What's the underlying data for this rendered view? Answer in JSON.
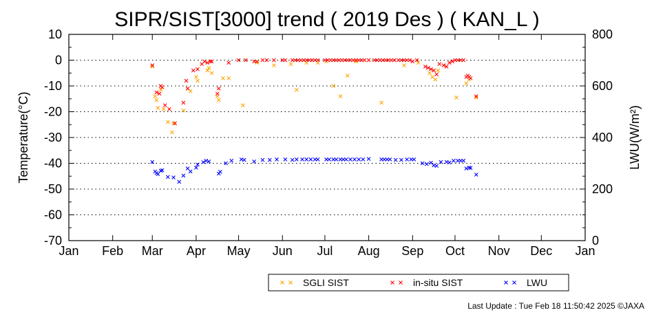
{
  "chart_data": {
    "type": "scatter",
    "title": "SIPR/SIST[3000] trend ( 2019 Des ) ( KAN_L )",
    "ylabel_left": "Temperature(°C)",
    "ylabel_right": "LWU(W/m²)",
    "ylim_left": [
      -70,
      10
    ],
    "ylim_right": [
      0,
      800
    ],
    "yticks_left": [
      "10",
      "0",
      "-10",
      "-20",
      "-30",
      "-40",
      "-50",
      "-60",
      "-70"
    ],
    "yticks_right": [
      "800",
      "600",
      "400",
      "200",
      "0"
    ],
    "x_tick_labels": [
      "Jan",
      "Feb",
      "Mar",
      "Apr",
      "May",
      "Jun",
      "Jul",
      "Aug",
      "Sep",
      "Oct",
      "Nov",
      "Dec",
      "Jan"
    ],
    "grid": "dotted horizontal at every 10 °C",
    "legend_placement": "bottom-right",
    "series": [
      {
        "name": "SGLI SIST",
        "color": "#ffa500",
        "axis": "left",
        "points": [
          [
            "Mar 1",
            -2.5
          ],
          [
            "Mar 3",
            -14
          ],
          [
            "Mar 4",
            -15.5
          ],
          [
            "Mar 5",
            -18.5
          ],
          [
            "Mar 7",
            -11.5
          ],
          [
            "Mar 9",
            -19
          ],
          [
            "Mar 12",
            -24
          ],
          [
            "Mar 15",
            -28
          ],
          [
            "Mar 16",
            -24.5
          ],
          [
            "Mar 23",
            -19.5
          ],
          [
            "Mar 26",
            -11
          ],
          [
            "Mar 28",
            -12
          ],
          [
            "Apr 1",
            -6.5
          ],
          [
            "Apr 2",
            -8
          ],
          [
            "Apr 9",
            -4
          ],
          [
            "Apr 10",
            -3
          ],
          [
            "Apr 12",
            -5
          ],
          [
            "Apr 16",
            -14
          ],
          [
            "Apr 17",
            -15.5
          ],
          [
            "Apr 20",
            -7
          ],
          [
            "Apr 24",
            -7
          ],
          [
            "May 4",
            -17.5
          ],
          [
            "May 14",
            -1
          ],
          [
            "May 26",
            -2
          ],
          [
            "Jun 7",
            -1.5
          ],
          [
            "Jun 11",
            -11.5
          ],
          [
            "Jun 18",
            -1
          ],
          [
            "Jun 26",
            -1
          ],
          [
            "Jul 2",
            -0.5
          ],
          [
            "Jul 7",
            -10
          ],
          [
            "Jul 12",
            -14
          ],
          [
            "Jul 17",
            -6
          ],
          [
            "Jul 23",
            -0.5
          ],
          [
            "Aug 10",
            -16.5
          ],
          [
            "Aug 26",
            -2
          ],
          [
            "Sep 5",
            -1
          ],
          [
            "Sep 13",
            -5
          ],
          [
            "Sep 15",
            -6.5
          ],
          [
            "Sep 17",
            -7.5
          ],
          [
            "Sep 19",
            -4
          ],
          [
            "Sep 23",
            -2
          ],
          [
            "Oct 2",
            -14.5
          ],
          [
            "Oct 9",
            -9
          ],
          [
            "Oct 11",
            -7.5
          ],
          [
            "Oct 16",
            -14.5
          ]
        ]
      },
      {
        "name": "in-situ SIST",
        "color": "#ff0000",
        "axis": "left",
        "points": [
          [
            "Mar 1",
            -2
          ],
          [
            "Mar 4",
            -12.5
          ],
          [
            "Mar 6",
            -13
          ],
          [
            "Mar 7",
            -10
          ],
          [
            "Mar 8",
            -10.5
          ],
          [
            "Mar 10",
            -17.5
          ],
          [
            "Mar 13",
            -19
          ],
          [
            "Mar 17",
            -24.5
          ],
          [
            "Mar 23",
            -16.5
          ],
          [
            "Mar 25",
            -8
          ],
          [
            "Mar 26",
            -11
          ],
          [
            "Mar 30",
            -4
          ],
          [
            "Apr 2",
            -3.5
          ],
          [
            "Apr 5",
            -1.5
          ],
          [
            "Apr 7",
            -0.5
          ],
          [
            "Apr 9",
            -1
          ],
          [
            "Apr 11",
            -0.5
          ],
          [
            "Apr 12",
            -0.5
          ],
          [
            "Apr 16",
            -13
          ],
          [
            "Apr 17",
            -11
          ],
          [
            "Apr 24",
            -1
          ],
          [
            "May 1",
            0
          ],
          [
            "May 6",
            0
          ],
          [
            "May 12",
            -0.5
          ],
          [
            "May 14",
            -0.5
          ],
          [
            "May 18",
            0
          ],
          [
            "May 21",
            0
          ],
          [
            "May 26",
            0
          ],
          [
            "Jun 1",
            0
          ],
          [
            "Jun 3",
            0
          ],
          [
            "Jun 8",
            0
          ],
          [
            "Jun 10",
            0
          ],
          [
            "Jun 12",
            0
          ],
          [
            "Jun 14",
            0
          ],
          [
            "Jun 16",
            0
          ],
          [
            "Jun 18",
            0
          ],
          [
            "Jun 20",
            0
          ],
          [
            "Jun 22",
            0
          ],
          [
            "Jun 24",
            0
          ],
          [
            "Jun 26",
            0
          ],
          [
            "Jul 1",
            0
          ],
          [
            "Jul 3",
            0
          ],
          [
            "Jul 5",
            0
          ],
          [
            "Jul 7",
            0
          ],
          [
            "Jul 9",
            0
          ],
          [
            "Jul 11",
            0
          ],
          [
            "Jul 13",
            0
          ],
          [
            "Jul 15",
            0
          ],
          [
            "Jul 17",
            0
          ],
          [
            "Jul 19",
            0
          ],
          [
            "Jul 21",
            0
          ],
          [
            "Jul 23",
            0
          ],
          [
            "Jul 25",
            0
          ],
          [
            "Jul 27",
            0
          ],
          [
            "Jul 29",
            0
          ],
          [
            "Aug 1",
            0
          ],
          [
            "Aug 5",
            0
          ],
          [
            "Aug 7",
            0
          ],
          [
            "Aug 9",
            0
          ],
          [
            "Aug 11",
            0
          ],
          [
            "Aug 13",
            0
          ],
          [
            "Aug 15",
            0
          ],
          [
            "Aug 17",
            0
          ],
          [
            "Aug 19",
            0
          ],
          [
            "Aug 22",
            0
          ],
          [
            "Aug 24",
            0
          ],
          [
            "Aug 26",
            0
          ],
          [
            "Aug 28",
            0
          ],
          [
            "Aug 30",
            0
          ],
          [
            "Sep 1",
            -0.5
          ],
          [
            "Sep 4",
            0
          ],
          [
            "Sep 10",
            -2.5
          ],
          [
            "Sep 12",
            -3
          ],
          [
            "Sep 14",
            -3.5
          ],
          [
            "Sep 16",
            -4
          ],
          [
            "Sep 18",
            -5.5
          ],
          [
            "Sep 20",
            -1.5
          ],
          [
            "Sep 23",
            -2
          ],
          [
            "Sep 25",
            -2.5
          ],
          [
            "Sep 27",
            -1
          ],
          [
            "Sep 29",
            -0.5
          ],
          [
            "Oct 1",
            0
          ],
          [
            "Oct 3",
            0
          ],
          [
            "Oct 5",
            0
          ],
          [
            "Oct 7",
            0
          ],
          [
            "Oct 9",
            -6.5
          ],
          [
            "Oct 10",
            -6
          ],
          [
            "Oct 11",
            -6.5
          ],
          [
            "Oct 12",
            -7
          ],
          [
            "Oct 16",
            -14
          ]
        ]
      },
      {
        "name": "LWU",
        "color": "#0000ff",
        "axis": "right",
        "points": [
          [
            "Mar 1",
            305
          ],
          [
            "Mar 3",
            268
          ],
          [
            "Mar 4",
            262
          ],
          [
            "Mar 5",
            258
          ],
          [
            "Mar 7",
            271
          ],
          [
            "Mar 8",
            273
          ],
          [
            "Mar 12",
            247
          ],
          [
            "Mar 16",
            245
          ],
          [
            "Mar 20",
            228
          ],
          [
            "Mar 23",
            252
          ],
          [
            "Mar 26",
            280
          ],
          [
            "Mar 28",
            268
          ],
          [
            "Apr 1",
            283
          ],
          [
            "Apr 2",
            295
          ],
          [
            "Apr 6",
            304
          ],
          [
            "Apr 8",
            310
          ],
          [
            "Apr 10",
            307
          ],
          [
            "Apr 17",
            260
          ],
          [
            "Apr 18",
            267
          ],
          [
            "Apr 22",
            300
          ],
          [
            "Apr 26",
            310
          ],
          [
            "May 3",
            315
          ],
          [
            "May 5",
            313
          ],
          [
            "May 12",
            307
          ],
          [
            "May 18",
            313
          ],
          [
            "May 23",
            313
          ],
          [
            "May 28",
            315
          ],
          [
            "Jun 3",
            315
          ],
          [
            "Jun 8",
            313
          ],
          [
            "Jun 11",
            315
          ],
          [
            "Jun 15",
            315
          ],
          [
            "Jun 18",
            315
          ],
          [
            "Jun 21",
            315
          ],
          [
            "Jun 24",
            315
          ],
          [
            "Jun 26",
            315
          ],
          [
            "Jul 2",
            315
          ],
          [
            "Jul 4",
            315
          ],
          [
            "Jul 7",
            315
          ],
          [
            "Jul 9",
            315
          ],
          [
            "Jul 12",
            315
          ],
          [
            "Jul 14",
            315
          ],
          [
            "Jul 16",
            315
          ],
          [
            "Jul 19",
            315
          ],
          [
            "Jul 22",
            315
          ],
          [
            "Jul 25",
            315
          ],
          [
            "Jul 28",
            315
          ],
          [
            "Aug 1",
            317
          ],
          [
            "Aug 10",
            315
          ],
          [
            "Aug 12",
            315
          ],
          [
            "Aug 14",
            315
          ],
          [
            "Aug 16",
            315
          ],
          [
            "Aug 20",
            313
          ],
          [
            "Aug 24",
            313
          ],
          [
            "Aug 28",
            315
          ],
          [
            "Aug 31",
            315
          ],
          [
            "Sep 2",
            315
          ],
          [
            "Sep 8",
            300
          ],
          [
            "Sep 11",
            297
          ],
          [
            "Sep 14",
            302
          ],
          [
            "Sep 16",
            292
          ],
          [
            "Sep 18",
            290
          ],
          [
            "Sep 21",
            305
          ],
          [
            "Sep 25",
            305
          ],
          [
            "Sep 27",
            303
          ],
          [
            "Sep 30",
            310
          ],
          [
            "Oct 3",
            310
          ],
          [
            "Oct 5",
            310
          ],
          [
            "Oct 7",
            310
          ],
          [
            "Oct 9",
            280
          ],
          [
            "Oct 11",
            283
          ],
          [
            "Oct 12",
            282
          ],
          [
            "Oct 16",
            256
          ]
        ]
      }
    ]
  },
  "footer": {
    "last_update": "Last Update : Tue Feb 18 11:50:42 2025",
    "credit": "©JAXA"
  }
}
